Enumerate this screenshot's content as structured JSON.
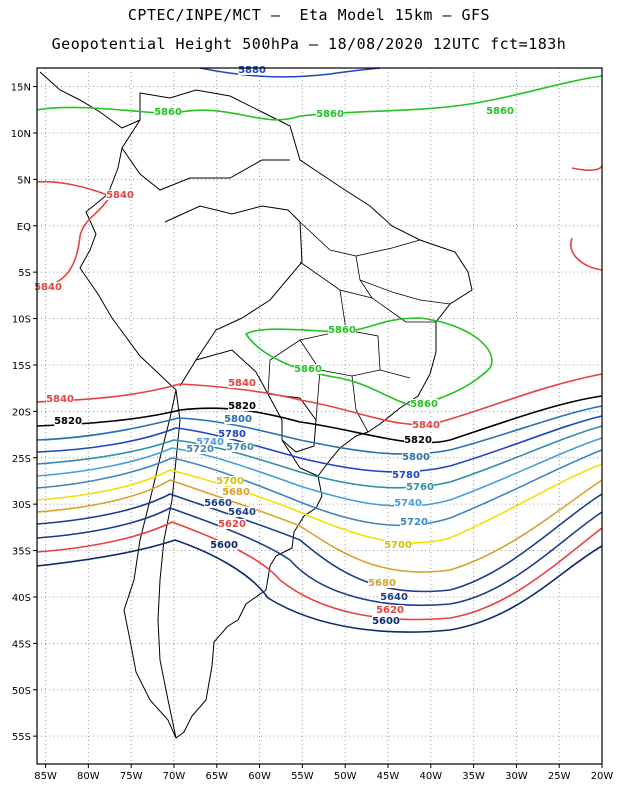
{
  "title_line1": "CPTEC/INPE/MCT –  Eta Model 15km – GFS",
  "title_line2": "Geopotential Height 500hPa – 18/08/2020 12UTC fct=183h",
  "map": {
    "lon_range": [
      -86,
      -20
    ],
    "lat_range": [
      -58,
      17
    ],
    "grid": "dotted",
    "lon_ticks": [
      "85W",
      "80W",
      "75W",
      "70W",
      "65W",
      "60W",
      "55W",
      "50W",
      "45W",
      "40W",
      "35W",
      "30W",
      "25W",
      "20W"
    ],
    "lat_ticks": [
      "15N",
      "10N",
      "5N",
      "EQ",
      "5S",
      "10S",
      "15S",
      "20S",
      "25S",
      "30S",
      "35S",
      "40S",
      "45S",
      "50S",
      "55S"
    ]
  },
  "contours": [
    {
      "level": 5880,
      "color": "#1e44c8",
      "labels": [
        "5880"
      ]
    },
    {
      "level": 5860,
      "color": "#22c422",
      "labels": [
        "5860",
        "5860",
        "5860",
        "5860",
        "5860",
        "5860"
      ]
    },
    {
      "level": 5840,
      "color": "#e8413f",
      "labels": [
        "5840",
        "5840",
        "5840",
        "5840",
        "5840"
      ]
    },
    {
      "level": 5820,
      "color": "#000000",
      "labels": [
        "5820",
        "5820",
        "5820"
      ]
    },
    {
      "level": 5800,
      "color": "#2a6fb0",
      "labels": [
        "5800",
        "5800"
      ]
    },
    {
      "level": 5780,
      "color": "#1e44c8",
      "labels": [
        "5780",
        "5780"
      ]
    },
    {
      "level": 5760,
      "color": "#2d8fa8",
      "labels": [
        "5760",
        "5760"
      ]
    },
    {
      "level": 5740,
      "color": "#45a0d8",
      "labels": [
        "5740",
        "5740"
      ]
    },
    {
      "level": 5720,
      "color": "#3e86c0",
      "labels": [
        "5720",
        "5720"
      ]
    },
    {
      "level": 5700,
      "color": "#f2e000",
      "labels": [
        "5700",
        "5700"
      ]
    },
    {
      "level": 5680,
      "color": "#d9a12a",
      "labels": [
        "5680",
        "5680"
      ]
    },
    {
      "level": 5660,
      "color": "#1a3d8c",
      "labels": [
        "5660"
      ]
    },
    {
      "level": 5640,
      "color": "#1a3d8c",
      "labels": [
        "5640",
        "5640"
      ]
    },
    {
      "level": 5620,
      "color": "#e8413f",
      "labels": [
        "5620",
        "5620"
      ]
    },
    {
      "level": 5600,
      "color": "#0c2a6e",
      "labels": [
        "5600",
        "5600"
      ]
    }
  ]
}
